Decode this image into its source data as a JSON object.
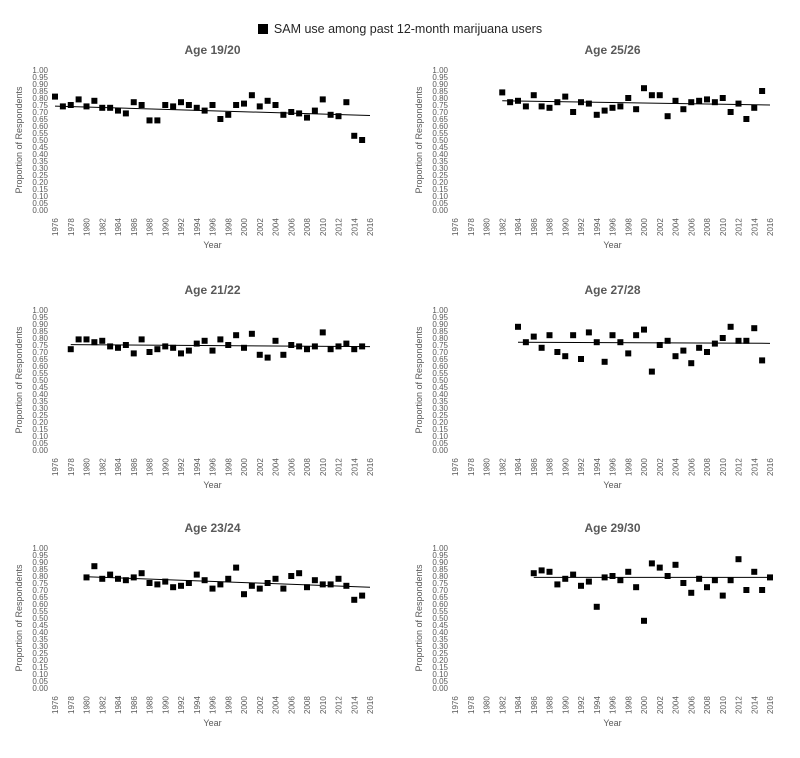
{
  "legend": {
    "label": "SAM use among past 12-month marijuana users",
    "marker_color": "#000000"
  },
  "chart_data": [
    {
      "type": "scatter",
      "title": "Age 19/20",
      "xlabel": "Year",
      "ylabel": "Proportion of Respondents",
      "xlim": [
        1976,
        2016
      ],
      "ylim": [
        0,
        1
      ],
      "trendline": true,
      "points": [
        [
          1976,
          0.81
        ],
        [
          1977,
          0.74
        ],
        [
          1978,
          0.75
        ],
        [
          1979,
          0.79
        ],
        [
          1980,
          0.74
        ],
        [
          1981,
          0.78
        ],
        [
          1982,
          0.73
        ],
        [
          1983,
          0.73
        ],
        [
          1984,
          0.71
        ],
        [
          1985,
          0.69
        ],
        [
          1986,
          0.77
        ],
        [
          1987,
          0.75
        ],
        [
          1988,
          0.64
        ],
        [
          1989,
          0.64
        ],
        [
          1990,
          0.75
        ],
        [
          1991,
          0.74
        ],
        [
          1992,
          0.77
        ],
        [
          1993,
          0.75
        ],
        [
          1994,
          0.73
        ],
        [
          1995,
          0.71
        ],
        [
          1996,
          0.75
        ],
        [
          1997,
          0.65
        ],
        [
          1998,
          0.68
        ],
        [
          1999,
          0.75
        ],
        [
          2000,
          0.76
        ],
        [
          2001,
          0.82
        ],
        [
          2002,
          0.74
        ],
        [
          2003,
          0.78
        ],
        [
          2004,
          0.75
        ],
        [
          2005,
          0.68
        ],
        [
          2006,
          0.7
        ],
        [
          2007,
          0.69
        ],
        [
          2008,
          0.66
        ],
        [
          2009,
          0.71
        ],
        [
          2010,
          0.79
        ],
        [
          2011,
          0.68
        ],
        [
          2012,
          0.67
        ],
        [
          2013,
          0.77
        ],
        [
          2014,
          0.53
        ],
        [
          2015,
          0.5
        ]
      ],
      "trend": {
        "from": [
          1976,
          0.742
        ],
        "to": [
          2016,
          0.675
        ]
      }
    },
    {
      "type": "scatter",
      "title": "Age 25/26",
      "xlabel": "Year",
      "ylabel": "Proportion of Respondents",
      "xlim": [
        1976,
        2016
      ],
      "ylim": [
        0,
        1
      ],
      "trendline": true,
      "points": [
        [
          1982,
          0.84
        ],
        [
          1983,
          0.77
        ],
        [
          1984,
          0.78
        ],
        [
          1985,
          0.74
        ],
        [
          1986,
          0.82
        ],
        [
          1987,
          0.74
        ],
        [
          1988,
          0.73
        ],
        [
          1989,
          0.77
        ],
        [
          1990,
          0.81
        ],
        [
          1991,
          0.7
        ],
        [
          1992,
          0.77
        ],
        [
          1993,
          0.76
        ],
        [
          1994,
          0.68
        ],
        [
          1995,
          0.71
        ],
        [
          1996,
          0.73
        ],
        [
          1997,
          0.74
        ],
        [
          1998,
          0.8
        ],
        [
          1999,
          0.72
        ],
        [
          2000,
          0.87
        ],
        [
          2001,
          0.82
        ],
        [
          2002,
          0.82
        ],
        [
          2003,
          0.67
        ],
        [
          2004,
          0.78
        ],
        [
          2005,
          0.72
        ],
        [
          2006,
          0.77
        ],
        [
          2007,
          0.78
        ],
        [
          2008,
          0.79
        ],
        [
          2009,
          0.77
        ],
        [
          2010,
          0.8
        ],
        [
          2011,
          0.7
        ],
        [
          2012,
          0.76
        ],
        [
          2013,
          0.65
        ],
        [
          2014,
          0.73
        ],
        [
          2015,
          0.85
        ]
      ],
      "trend": {
        "from": [
          1982,
          0.78
        ],
        "to": [
          2016,
          0.75
        ]
      }
    },
    {
      "type": "scatter",
      "title": "Age 21/22",
      "xlabel": "Year",
      "ylabel": "Proportion of Respondents",
      "xlim": [
        1976,
        2016
      ],
      "ylim": [
        0,
        1
      ],
      "trendline": true,
      "points": [
        [
          1978,
          0.72
        ],
        [
          1979,
          0.79
        ],
        [
          1980,
          0.79
        ],
        [
          1981,
          0.77
        ],
        [
          1982,
          0.78
        ],
        [
          1983,
          0.74
        ],
        [
          1984,
          0.73
        ],
        [
          1985,
          0.75
        ],
        [
          1986,
          0.69
        ],
        [
          1987,
          0.79
        ],
        [
          1988,
          0.7
        ],
        [
          1989,
          0.72
        ],
        [
          1990,
          0.74
        ],
        [
          1991,
          0.73
        ],
        [
          1992,
          0.69
        ],
        [
          1993,
          0.71
        ],
        [
          1994,
          0.76
        ],
        [
          1995,
          0.78
        ],
        [
          1996,
          0.71
        ],
        [
          1997,
          0.79
        ],
        [
          1998,
          0.75
        ],
        [
          1999,
          0.82
        ],
        [
          2000,
          0.73
        ],
        [
          2001,
          0.83
        ],
        [
          2002,
          0.68
        ],
        [
          2003,
          0.66
        ],
        [
          2004,
          0.78
        ],
        [
          2005,
          0.68
        ],
        [
          2006,
          0.75
        ],
        [
          2007,
          0.74
        ],
        [
          2008,
          0.72
        ],
        [
          2009,
          0.74
        ],
        [
          2010,
          0.84
        ],
        [
          2011,
          0.72
        ],
        [
          2012,
          0.74
        ],
        [
          2013,
          0.76
        ],
        [
          2014,
          0.72
        ],
        [
          2015,
          0.74
        ]
      ],
      "trend": {
        "from": [
          1978,
          0.753
        ],
        "to": [
          2016,
          0.738
        ]
      }
    },
    {
      "type": "scatter",
      "title": "Age 27/28",
      "xlabel": "Year",
      "ylabel": "Proportion of Respondents",
      "xlim": [
        1976,
        2016
      ],
      "ylim": [
        0,
        1
      ],
      "trendline": true,
      "points": [
        [
          1984,
          0.88
        ],
        [
          1985,
          0.77
        ],
        [
          1986,
          0.81
        ],
        [
          1987,
          0.73
        ],
        [
          1988,
          0.82
        ],
        [
          1989,
          0.7
        ],
        [
          1990,
          0.67
        ],
        [
          1991,
          0.82
        ],
        [
          1992,
          0.65
        ],
        [
          1993,
          0.84
        ],
        [
          1994,
          0.77
        ],
        [
          1995,
          0.63
        ],
        [
          1996,
          0.82
        ],
        [
          1997,
          0.77
        ],
        [
          1998,
          0.69
        ],
        [
          1999,
          0.82
        ],
        [
          2000,
          0.86
        ],
        [
          2001,
          0.56
        ],
        [
          2002,
          0.75
        ],
        [
          2003,
          0.78
        ],
        [
          2004,
          0.67
        ],
        [
          2005,
          0.71
        ],
        [
          2006,
          0.62
        ],
        [
          2007,
          0.73
        ],
        [
          2008,
          0.7
        ],
        [
          2009,
          0.76
        ],
        [
          2010,
          0.8
        ],
        [
          2011,
          0.88
        ],
        [
          2012,
          0.78
        ],
        [
          2013,
          0.78
        ],
        [
          2014,
          0.87
        ],
        [
          2015,
          0.64
        ]
      ],
      "trend": {
        "from": [
          1984,
          0.77
        ],
        "to": [
          2016,
          0.762
        ]
      }
    },
    {
      "type": "scatter",
      "title": "Age 23/24",
      "xlabel": "Year",
      "ylabel": "Proportion of Respondents",
      "xlim": [
        1976,
        2016
      ],
      "ylim": [
        0,
        1
      ],
      "trendline": true,
      "points": [
        [
          1980,
          0.79
        ],
        [
          1981,
          0.87
        ],
        [
          1982,
          0.78
        ],
        [
          1983,
          0.81
        ],
        [
          1984,
          0.78
        ],
        [
          1985,
          0.77
        ],
        [
          1986,
          0.79
        ],
        [
          1987,
          0.82
        ],
        [
          1988,
          0.75
        ],
        [
          1989,
          0.74
        ],
        [
          1990,
          0.76
        ],
        [
          1991,
          0.72
        ],
        [
          1992,
          0.73
        ],
        [
          1993,
          0.75
        ],
        [
          1994,
          0.81
        ],
        [
          1995,
          0.77
        ],
        [
          1996,
          0.71
        ],
        [
          1997,
          0.74
        ],
        [
          1998,
          0.78
        ],
        [
          1999,
          0.86
        ],
        [
          2000,
          0.67
        ],
        [
          2001,
          0.73
        ],
        [
          2002,
          0.71
        ],
        [
          2003,
          0.75
        ],
        [
          2004,
          0.78
        ],
        [
          2005,
          0.71
        ],
        [
          2006,
          0.8
        ],
        [
          2007,
          0.82
        ],
        [
          2008,
          0.72
        ],
        [
          2009,
          0.77
        ],
        [
          2010,
          0.74
        ],
        [
          2011,
          0.74
        ],
        [
          2012,
          0.78
        ],
        [
          2013,
          0.73
        ],
        [
          2014,
          0.63
        ],
        [
          2015,
          0.66
        ]
      ],
      "trend": {
        "from": [
          1980,
          0.795
        ],
        "to": [
          2016,
          0.72
        ]
      }
    },
    {
      "type": "scatter",
      "title": "Age 29/30",
      "xlabel": "Year",
      "ylabel": "Proportion of Respondents",
      "xlim": [
        1976,
        2016
      ],
      "ylim": [
        0,
        1
      ],
      "trendline": true,
      "points": [
        [
          1986,
          0.82
        ],
        [
          1987,
          0.84
        ],
        [
          1988,
          0.83
        ],
        [
          1989,
          0.74
        ],
        [
          1990,
          0.78
        ],
        [
          1991,
          0.81
        ],
        [
          1992,
          0.73
        ],
        [
          1993,
          0.76
        ],
        [
          1994,
          0.58
        ],
        [
          1995,
          0.79
        ],
        [
          1996,
          0.8
        ],
        [
          1997,
          0.77
        ],
        [
          1998,
          0.83
        ],
        [
          1999,
          0.72
        ],
        [
          2000,
          0.48
        ],
        [
          2001,
          0.89
        ],
        [
          2002,
          0.86
        ],
        [
          2003,
          0.8
        ],
        [
          2004,
          0.88
        ],
        [
          2005,
          0.75
        ],
        [
          2006,
          0.68
        ],
        [
          2007,
          0.78
        ],
        [
          2008,
          0.72
        ],
        [
          2009,
          0.77
        ],
        [
          2010,
          0.66
        ],
        [
          2011,
          0.77
        ],
        [
          2012,
          0.92
        ],
        [
          2013,
          0.7
        ],
        [
          2014,
          0.83
        ],
        [
          2015,
          0.7
        ],
        [
          2016,
          0.79
        ]
      ],
      "trend": {
        "from": [
          1986,
          0.79
        ],
        "to": [
          2016,
          0.79
        ]
      }
    }
  ]
}
